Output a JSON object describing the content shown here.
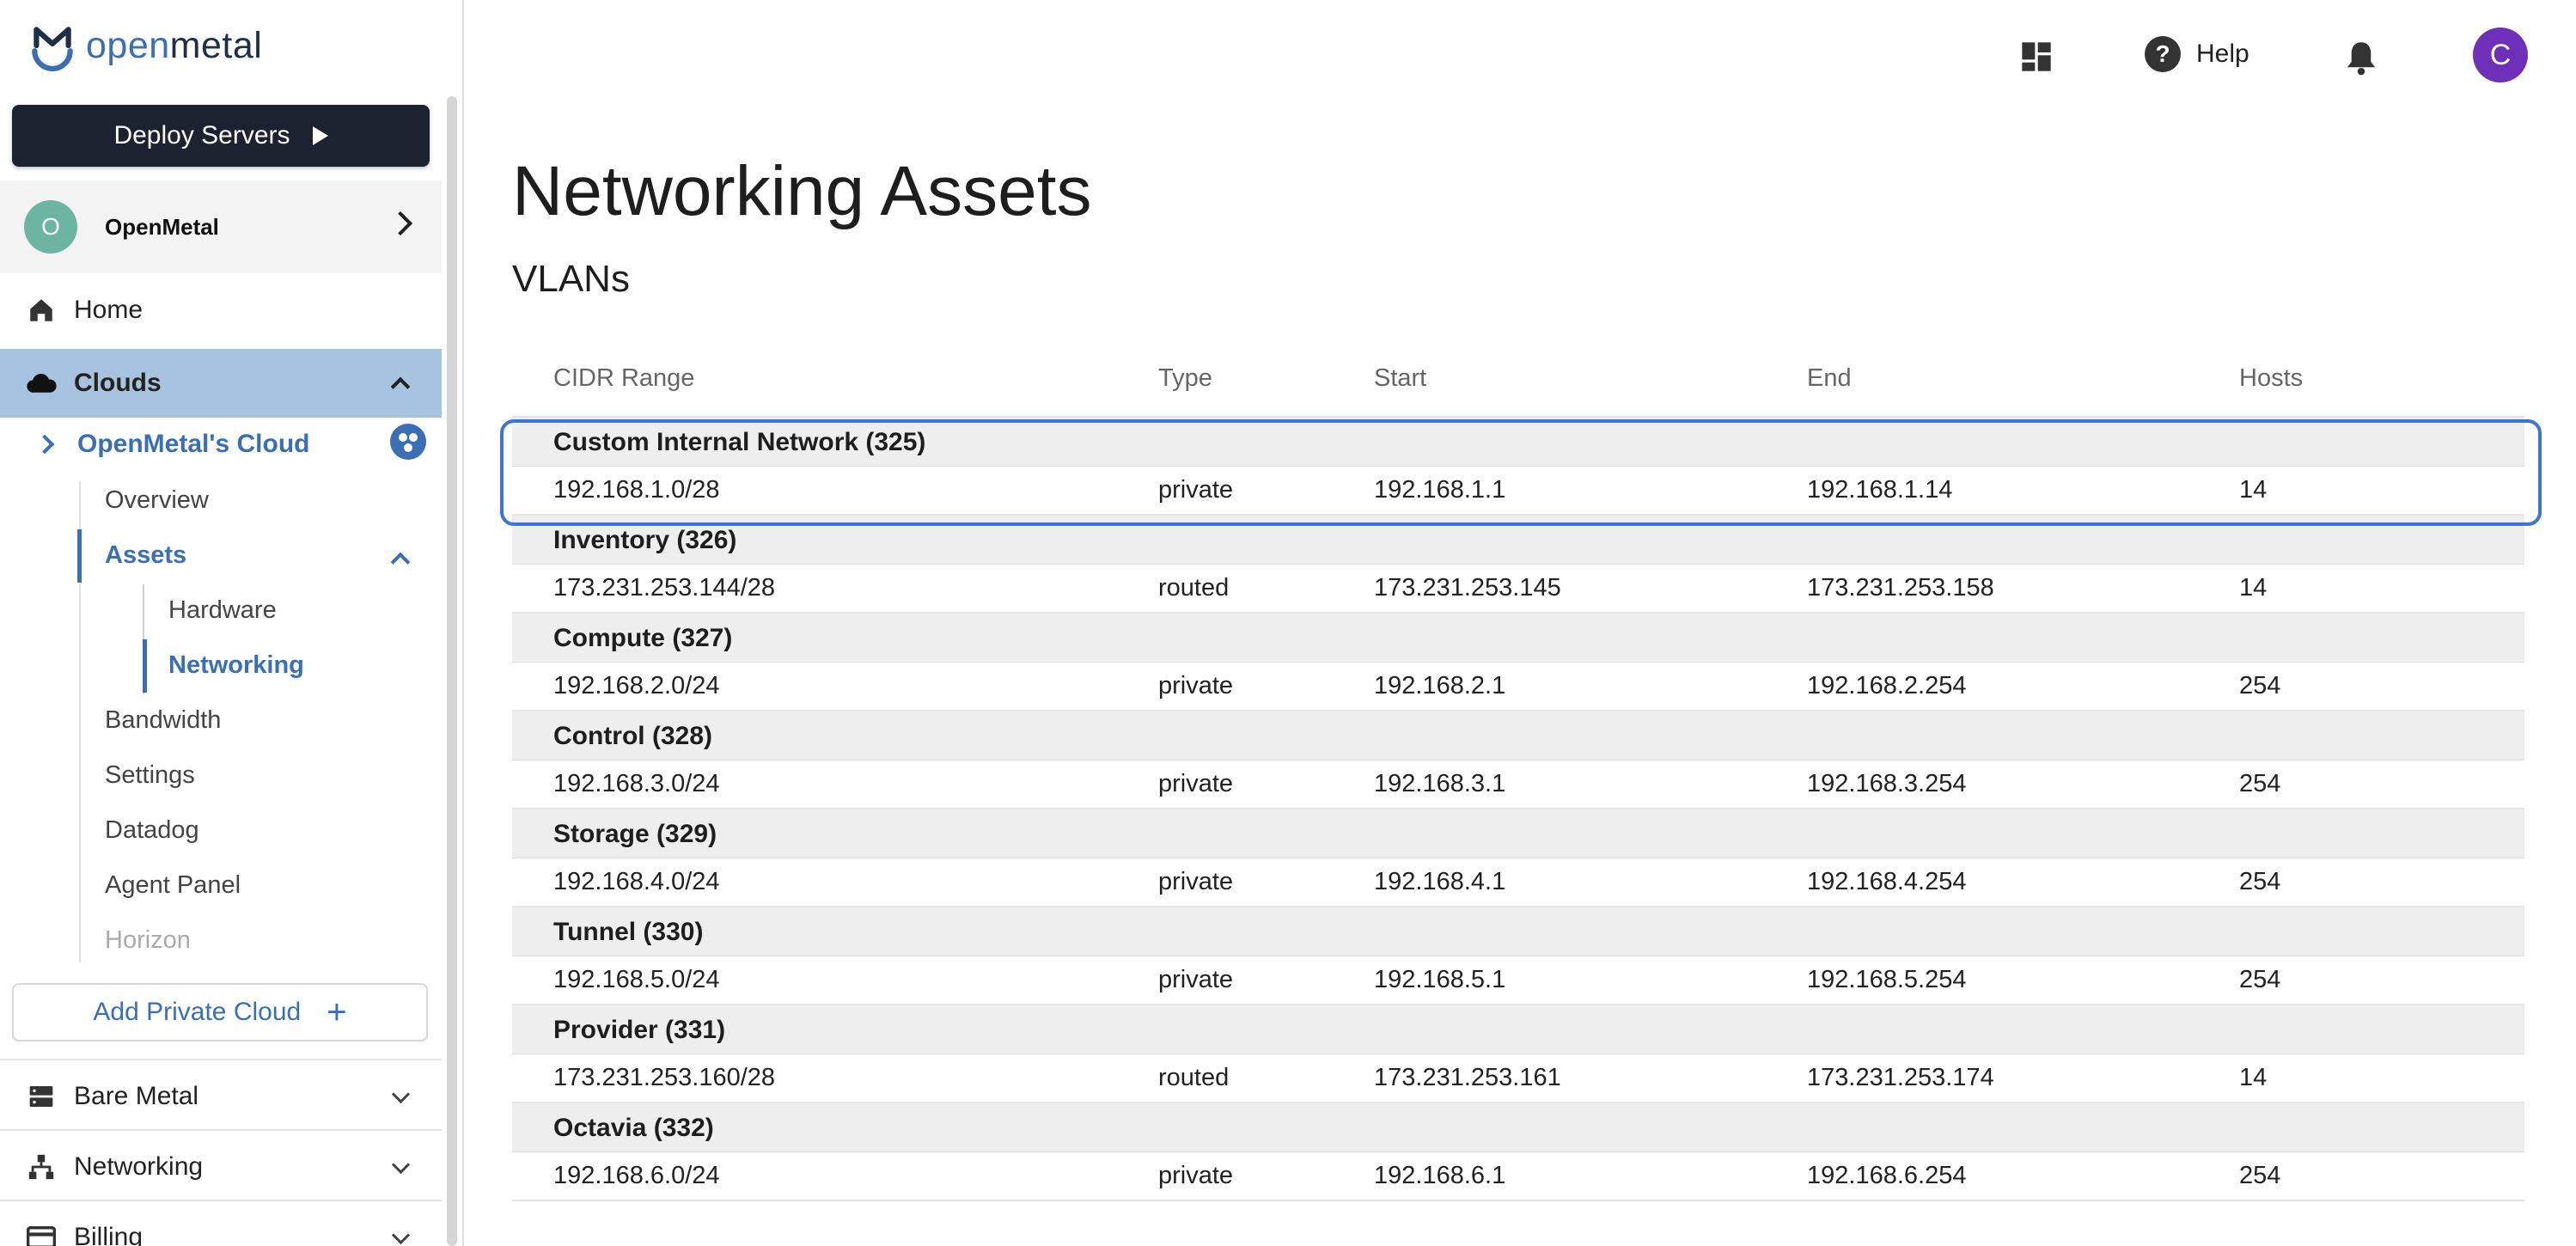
{
  "brand": {
    "name_part1": "open",
    "name_part2": "metal"
  },
  "sidebar": {
    "deploy_label": "Deploy Servers",
    "org": {
      "initial": "O",
      "name": "OpenMetal"
    },
    "home": "Home",
    "clouds": "Clouds",
    "cloud_name": "OpenMetal's Cloud",
    "cloud_items": {
      "overview": "Overview",
      "assets": "Assets",
      "hardware": "Hardware",
      "networking": "Networking",
      "bandwidth": "Bandwidth",
      "settings": "Settings",
      "datadog": "Datadog",
      "agent_panel": "Agent Panel",
      "horizon": "Horizon"
    },
    "add_cloud": "Add Private Cloud",
    "bare_metal": "Bare Metal",
    "networking": "Networking",
    "billing": "Billing"
  },
  "topbar": {
    "help": "Help",
    "avatar_initial": "C"
  },
  "main": {
    "title": "Networking Assets",
    "section": "VLANs",
    "columns": [
      "CIDR Range",
      "Type",
      "Start",
      "End",
      "Hosts"
    ],
    "vlans": [
      {
        "name": "Custom Internal Network (325)",
        "cidr": "192.168.1.0/28",
        "type": "private",
        "start": "192.168.1.1",
        "end": "192.168.1.14",
        "hosts": "14"
      },
      {
        "name": "Inventory (326)",
        "cidr": "173.231.253.144/28",
        "type": "routed",
        "start": "173.231.253.145",
        "end": "173.231.253.158",
        "hosts": "14"
      },
      {
        "name": "Compute (327)",
        "cidr": "192.168.2.0/24",
        "type": "private",
        "start": "192.168.2.1",
        "end": "192.168.2.254",
        "hosts": "254"
      },
      {
        "name": "Control (328)",
        "cidr": "192.168.3.0/24",
        "type": "private",
        "start": "192.168.3.1",
        "end": "192.168.3.254",
        "hosts": "254"
      },
      {
        "name": "Storage (329)",
        "cidr": "192.168.4.0/24",
        "type": "private",
        "start": "192.168.4.1",
        "end": "192.168.4.254",
        "hosts": "254"
      },
      {
        "name": "Tunnel (330)",
        "cidr": "192.168.5.0/24",
        "type": "private",
        "start": "192.168.5.1",
        "end": "192.168.5.254",
        "hosts": "254"
      },
      {
        "name": "Provider (331)",
        "cidr": "173.231.253.160/28",
        "type": "routed",
        "start": "173.231.253.161",
        "end": "173.231.253.174",
        "hosts": "14"
      },
      {
        "name": "Octavia (332)",
        "cidr": "192.168.6.0/24",
        "type": "private",
        "start": "192.168.6.1",
        "end": "192.168.6.254",
        "hosts": "254"
      }
    ]
  },
  "colors": {
    "accent": "#3a6fb5",
    "nav_active_bg": "#a7c3df",
    "highlight_border": "#3c74d8",
    "avatar": "#6f2fb8",
    "deploy_bg": "#1b2330"
  }
}
